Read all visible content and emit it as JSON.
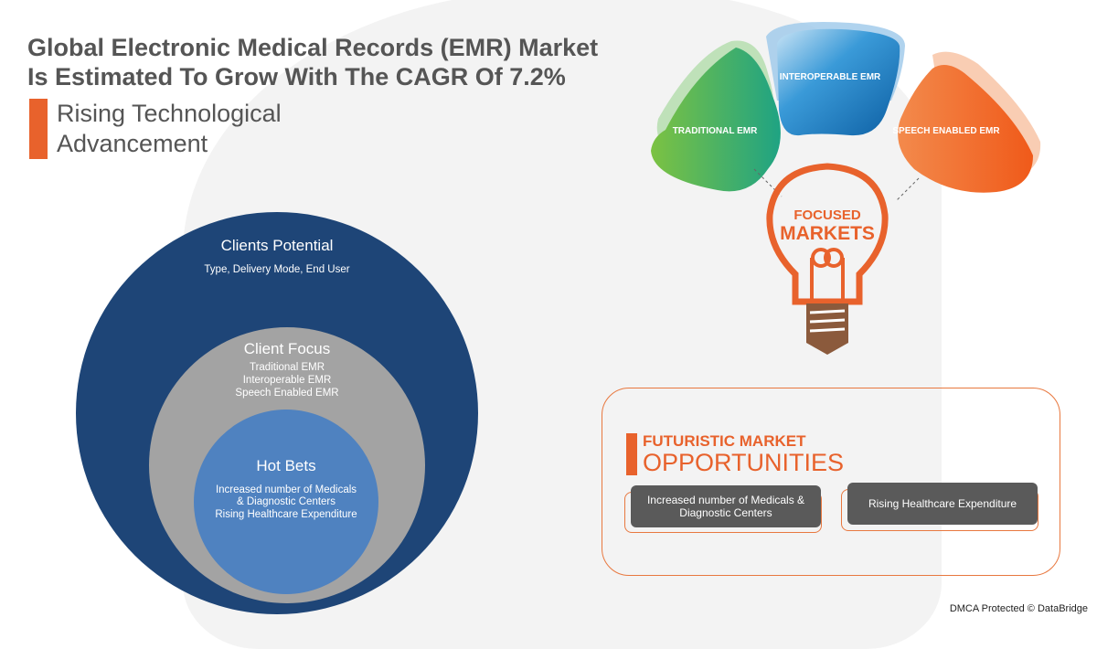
{
  "header": {
    "title_line1": "Global Electronic Medical Records (EMR) Market",
    "title_line2": "Is Estimated To Grow With The CAGR Of 7.2%",
    "subtitle_line1": "Rising Technological",
    "subtitle_line2": "Advancement"
  },
  "circles": {
    "outer": {
      "title": "Clients Potential",
      "text": "Type, Delivery Mode, End User"
    },
    "middle": {
      "title": "Client Focus",
      "items": [
        "Traditional EMR",
        "Interoperable EMR",
        "Speech Enabled EMR"
      ]
    },
    "inner": {
      "title": "Hot Bets",
      "items": [
        "Increased number of Medicals",
        "& Diagnostic Centers",
        "Rising Healthcare Expenditure"
      ]
    }
  },
  "focused": {
    "petals": [
      "TRADITIONAL EMR",
      "INTEROPERABLE EMR",
      "SPEECH ENABLED EMR"
    ],
    "bulb_line1": "FOCUSED",
    "bulb_line2": "MARKETS",
    "colors": {
      "traditional": "#3aa65a",
      "interoperable": "#1e84c8",
      "speech": "#f06a2a",
      "bulb": "#e8622c",
      "base": "#8b5a3c"
    }
  },
  "opportunities": {
    "heading1": "FUTURISTIC MARKET",
    "heading2": "OPPORTUNITIES",
    "items": [
      "Increased number of Medicals & Diagnostic Centers",
      "Rising Healthcare Expenditure"
    ]
  },
  "footer": {
    "dmca": "DMCA Protected © DataBridge"
  }
}
